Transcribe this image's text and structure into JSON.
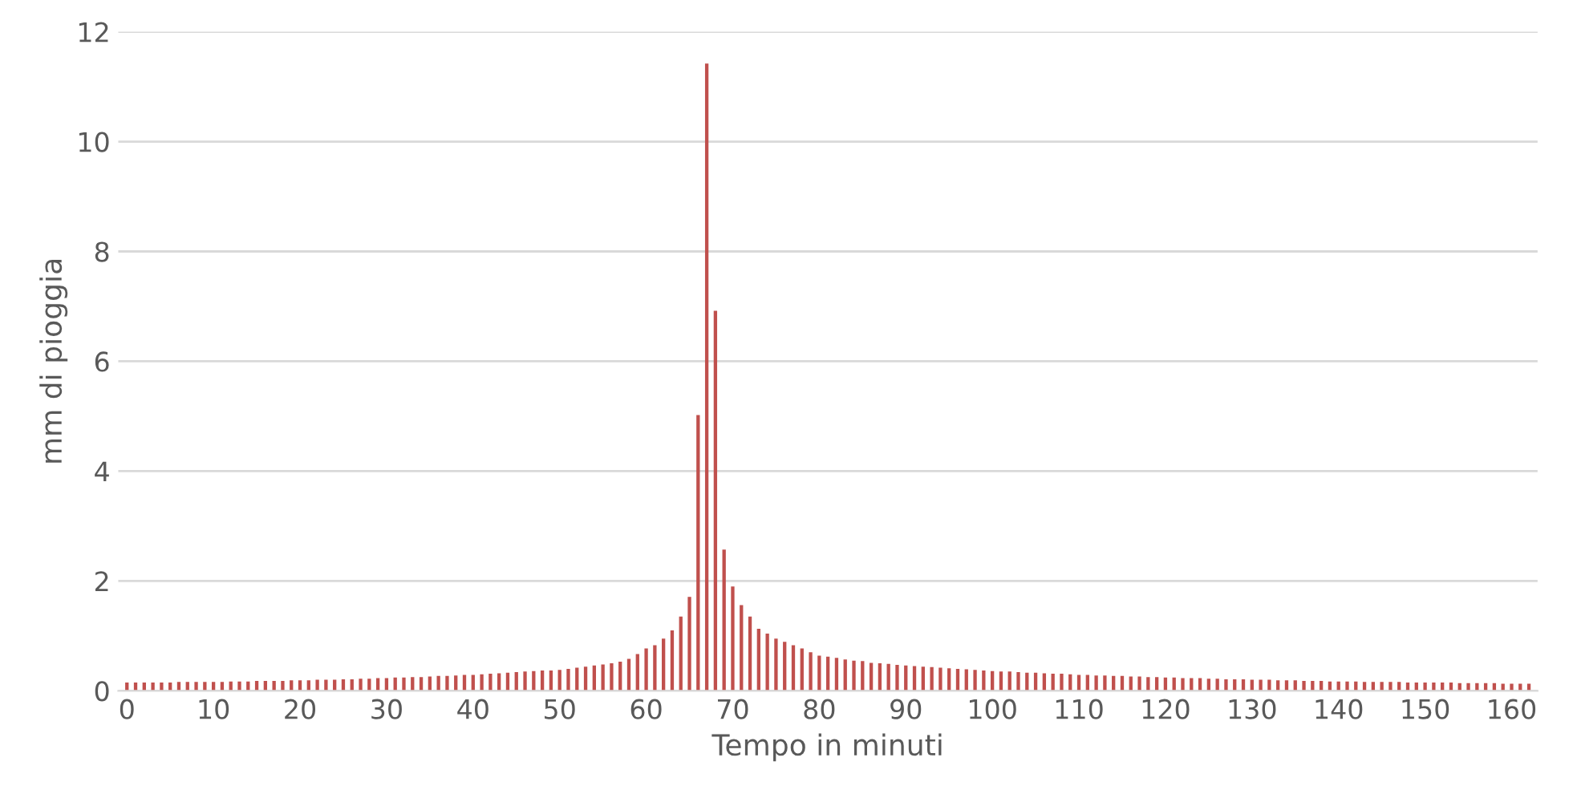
{
  "chart_data": {
    "type": "bar",
    "xlabel": "Tempo in minuti",
    "ylabel": "mm di pioggia",
    "color": "#c0504d",
    "grid": "y",
    "x": [
      0,
      1,
      2,
      3,
      4,
      5,
      6,
      7,
      8,
      9,
      10,
      11,
      12,
      13,
      14,
      15,
      16,
      17,
      18,
      19,
      20,
      21,
      22,
      23,
      24,
      25,
      26,
      27,
      28,
      29,
      30,
      31,
      32,
      33,
      34,
      35,
      36,
      37,
      38,
      39,
      40,
      41,
      42,
      43,
      44,
      45,
      46,
      47,
      48,
      49,
      50,
      51,
      52,
      53,
      54,
      55,
      56,
      57,
      58,
      59,
      60,
      61,
      62,
      63,
      64,
      65,
      66,
      67,
      68,
      69,
      70,
      71,
      72,
      73,
      74,
      75,
      76,
      77,
      78,
      79,
      80,
      81,
      82,
      83,
      84,
      85,
      86,
      87,
      88,
      89,
      90,
      91,
      92,
      93,
      94,
      95,
      96,
      97,
      98,
      99,
      100,
      101,
      102,
      103,
      104,
      105,
      106,
      107,
      108,
      109,
      110,
      111,
      112,
      113,
      114,
      115,
      116,
      117,
      118,
      119,
      120,
      121,
      122,
      123,
      124,
      125,
      126,
      127,
      128,
      129,
      130,
      131,
      132,
      133,
      134,
      135,
      136,
      137,
      138,
      139,
      140,
      141,
      142,
      143,
      144,
      145,
      146,
      147,
      148,
      149,
      150,
      151,
      152,
      153,
      154,
      155,
      156,
      157,
      158,
      159,
      160,
      161,
      162
    ],
    "values": [
      0.15,
      0.15,
      0.15,
      0.15,
      0.15,
      0.15,
      0.16,
      0.16,
      0.16,
      0.16,
      0.16,
      0.16,
      0.17,
      0.17,
      0.17,
      0.18,
      0.18,
      0.18,
      0.18,
      0.19,
      0.19,
      0.19,
      0.2,
      0.2,
      0.2,
      0.21,
      0.21,
      0.22,
      0.22,
      0.23,
      0.23,
      0.24,
      0.24,
      0.25,
      0.25,
      0.26,
      0.27,
      0.27,
      0.28,
      0.29,
      0.29,
      0.3,
      0.31,
      0.32,
      0.33,
      0.34,
      0.35,
      0.36,
      0.37,
      0.37,
      0.38,
      0.4,
      0.42,
      0.44,
      0.46,
      0.48,
      0.5,
      0.53,
      0.58,
      0.67,
      0.77,
      0.83,
      0.95,
      1.1,
      1.35,
      1.71,
      5.02,
      11.42,
      6.92,
      2.57,
      1.9,
      1.56,
      1.35,
      1.13,
      1.04,
      0.95,
      0.89,
      0.83,
      0.77,
      0.7,
      0.64,
      0.62,
      0.6,
      0.57,
      0.55,
      0.54,
      0.51,
      0.5,
      0.49,
      0.47,
      0.46,
      0.45,
      0.44,
      0.43,
      0.42,
      0.41,
      0.4,
      0.39,
      0.38,
      0.37,
      0.36,
      0.35,
      0.35,
      0.34,
      0.33,
      0.33,
      0.32,
      0.31,
      0.31,
      0.3,
      0.29,
      0.29,
      0.28,
      0.28,
      0.27,
      0.27,
      0.26,
      0.26,
      0.25,
      0.25,
      0.24,
      0.24,
      0.23,
      0.23,
      0.23,
      0.22,
      0.22,
      0.21,
      0.21,
      0.21,
      0.2,
      0.2,
      0.2,
      0.19,
      0.19,
      0.19,
      0.18,
      0.18,
      0.18,
      0.17,
      0.17,
      0.17,
      0.17,
      0.16,
      0.16,
      0.16,
      0.16,
      0.16,
      0.15,
      0.15,
      0.15,
      0.15,
      0.15,
      0.15,
      0.14,
      0.14,
      0.14,
      0.14,
      0.14,
      0.13,
      0.13,
      0.13,
      0.13
    ],
    "xlim": [
      -1,
      163
    ],
    "xticks": [
      0,
      10,
      20,
      30,
      40,
      50,
      60,
      70,
      80,
      90,
      100,
      110,
      120,
      130,
      140,
      150,
      160
    ],
    "ylim": [
      0,
      12
    ],
    "yticks": [
      0,
      2,
      4,
      6,
      8,
      10,
      12
    ]
  }
}
